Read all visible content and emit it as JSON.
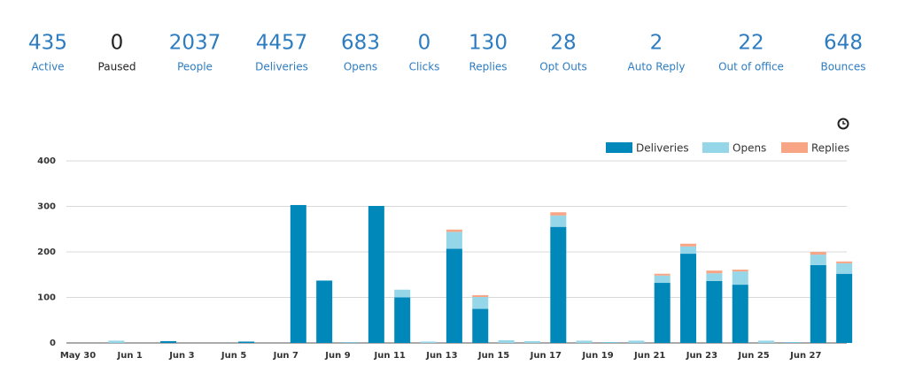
{
  "stats": [
    {
      "value": "435",
      "label": "Active",
      "color": "#2e7cc0"
    },
    {
      "value": "0",
      "label": "Paused",
      "color": "#222222"
    },
    {
      "value": "2037",
      "label": "People",
      "color": "#2e7cc0"
    },
    {
      "value": "4457",
      "label": "Deliveries",
      "color": "#2e7cc0"
    },
    {
      "value": "683",
      "label": "Opens",
      "color": "#2e7cc0"
    },
    {
      "value": "0",
      "label": "Clicks",
      "color": "#2e7cc0"
    },
    {
      "value": "130",
      "label": "Replies",
      "color": "#2e7cc0"
    },
    {
      "value": "28",
      "label": "Opt Outs",
      "color": "#2e7cc0"
    },
    {
      "value": "2",
      "label": "Auto Reply",
      "color": "#2e7cc0"
    },
    {
      "value": "22",
      "label": "Out of office",
      "color": "#2e7cc0"
    },
    {
      "value": "648",
      "label": "Bounces",
      "color": "#2e7cc0"
    }
  ],
  "chart_data": {
    "type": "stacked_bar",
    "categories": [
      "May 30",
      null,
      "Jun 1",
      null,
      "Jun 3",
      null,
      "Jun 5",
      null,
      "Jun 7",
      null,
      "Jun 9",
      null,
      "Jun 11",
      null,
      "Jun 13",
      null,
      "Jun 15",
      null,
      "Jun 17",
      null,
      "Jun 19",
      null,
      "Jun 21",
      null,
      "Jun 23",
      null,
      "Jun 25",
      null,
      "Jun 27",
      null
    ],
    "series": [
      {
        "name": "Deliveries",
        "color": "#0088bb",
        "values": [
          0,
          0,
          0,
          4,
          0,
          0,
          3,
          0,
          303,
          137,
          1,
          301,
          100,
          0,
          207,
          75,
          0,
          0,
          255,
          0,
          1,
          0,
          132,
          196,
          136,
          128,
          0,
          1,
          171,
          152
        ]
      },
      {
        "name": "Opens",
        "color": "#95d6e8",
        "values": [
          0,
          5,
          0,
          0,
          0,
          0,
          0,
          0,
          0,
          0,
          0,
          0,
          17,
          3,
          37,
          26,
          6,
          4,
          25,
          5,
          0,
          5,
          16,
          16,
          17,
          29,
          5,
          0,
          23,
          23
        ]
      },
      {
        "name": "Replies",
        "color": "#f7a585",
        "values": [
          0,
          0,
          0,
          0,
          0,
          0,
          0,
          0,
          0,
          0,
          0,
          0,
          0,
          0,
          5,
          4,
          0,
          0,
          7,
          0,
          0,
          0,
          4,
          6,
          6,
          4,
          0,
          0,
          6,
          4
        ]
      }
    ],
    "ylim": [
      0,
      400
    ],
    "yticks": [
      0,
      100,
      200,
      300,
      400
    ],
    "grid": true,
    "legend": "top-right"
  }
}
